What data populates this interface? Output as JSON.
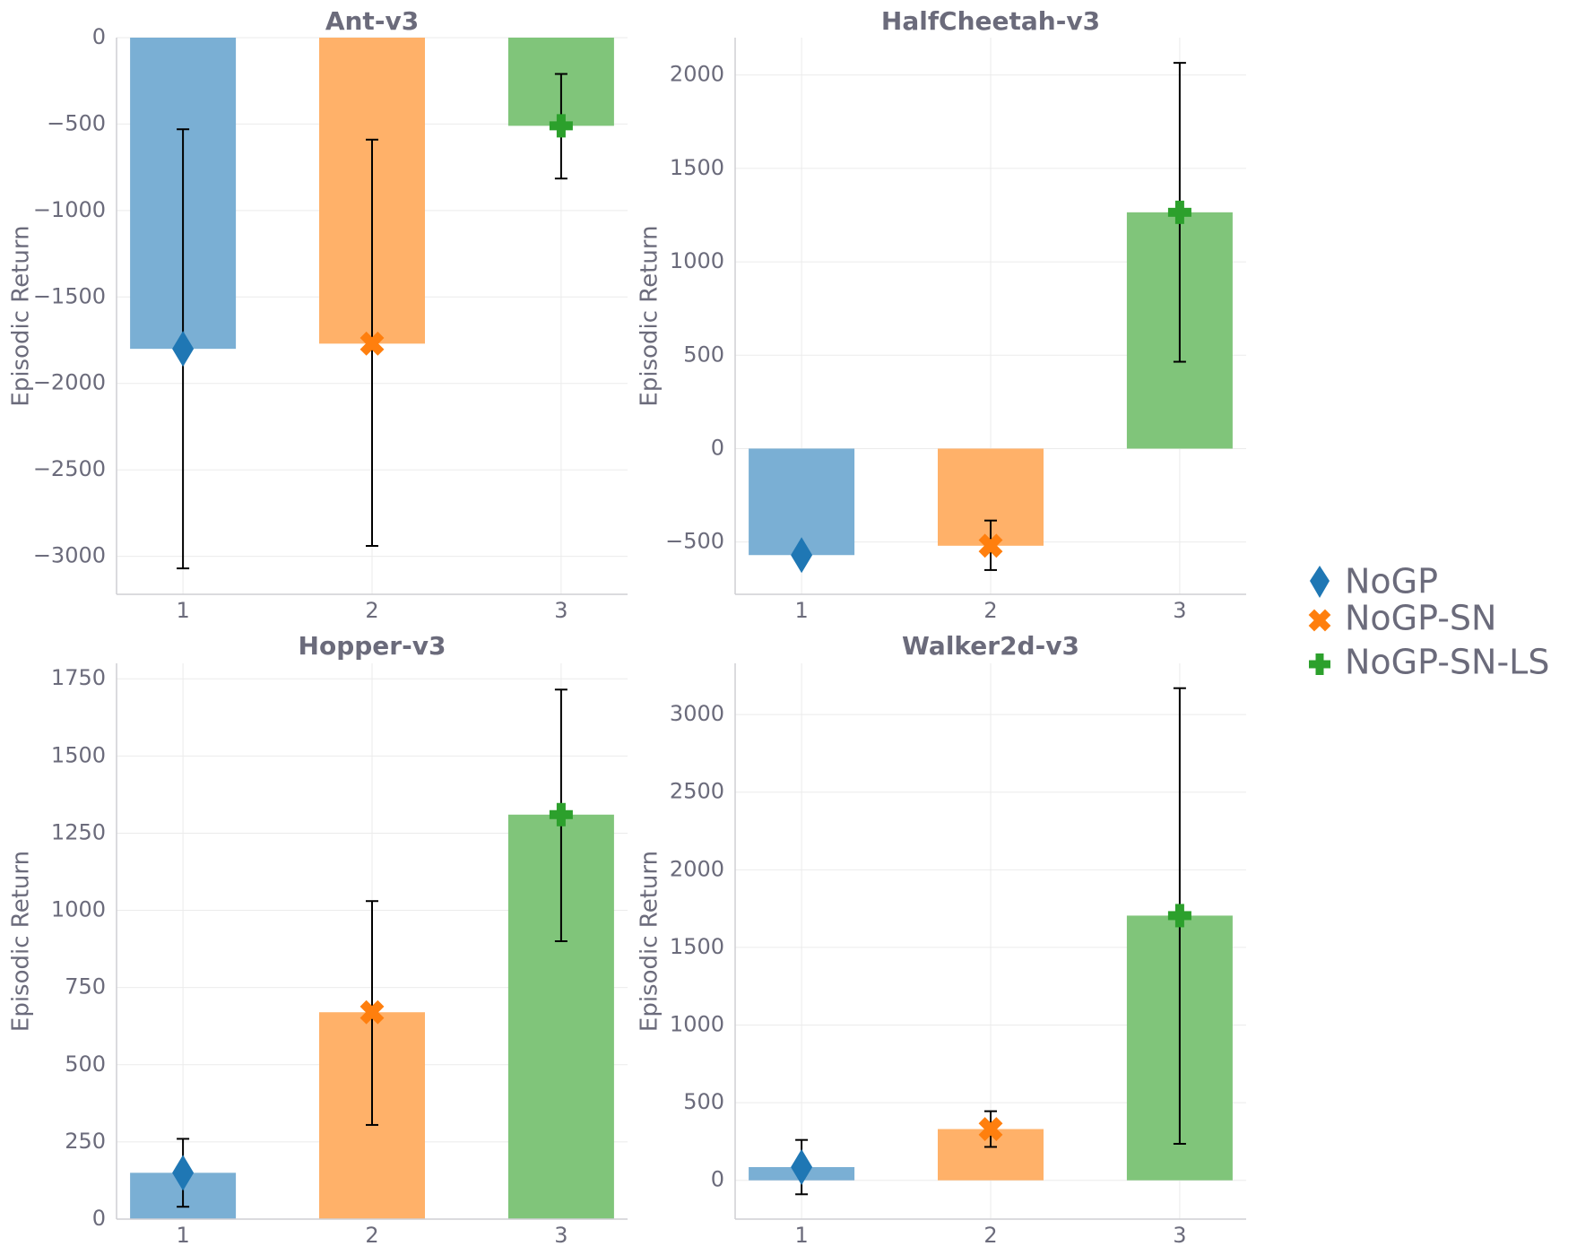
{
  "colors": {
    "series1_bar": "#7aafd4",
    "series2_bar": "#ffb169",
    "series3_bar": "#80c57a",
    "series1_marker": "#1f77b4",
    "series2_marker": "#ff7f0e",
    "series3_marker": "#2ca02c",
    "text": "#6b6b7b"
  },
  "legend": {
    "items": [
      {
        "label": "NoGP",
        "marker": "diamond-icon",
        "color": "#1f77b4"
      },
      {
        "label": "NoGP-SN",
        "marker": "x-icon",
        "color": "#ff7f0e"
      },
      {
        "label": "NoGP-SN-LS",
        "marker": "plus-icon",
        "color": "#2ca02c"
      }
    ]
  },
  "chart_data": [
    {
      "type": "bar",
      "title": "Ant-v3",
      "xlabel": "",
      "ylabel": "Episodic Return",
      "categories": [
        "1",
        "2",
        "3"
      ],
      "values": [
        -1800,
        -1770,
        -510
      ],
      "err_low": [
        -3070,
        -2940,
        -815
      ],
      "err_high": [
        -530,
        -590,
        -210
      ],
      "ylim": [
        -3220,
        0
      ],
      "yticks": [
        0,
        -500,
        -1000,
        -1500,
        -2000,
        -2500,
        -3000
      ],
      "ytick_labels": [
        "0",
        "−500",
        "−1000",
        "−1500",
        "−2000",
        "−2500",
        "−3000"
      ]
    },
    {
      "type": "bar",
      "title": "HalfCheetah-v3",
      "xlabel": "",
      "ylabel": "Episodic Return",
      "categories": [
        "1",
        "2",
        "3"
      ],
      "values": [
        -570,
        -520,
        1265
      ],
      "err_low": [
        null,
        -650,
        465
      ],
      "err_high": [
        null,
        -385,
        2065
      ],
      "ylim": [
        -780,
        2200
      ],
      "yticks": [
        2000,
        1500,
        1000,
        500,
        0,
        -500
      ],
      "ytick_labels": [
        "2000",
        "1500",
        "1000",
        "500",
        "0",
        "−500"
      ]
    },
    {
      "type": "bar",
      "title": "Hopper-v3",
      "xlabel": "",
      "ylabel": "Episodic Return",
      "categories": [
        "1",
        "2",
        "3"
      ],
      "values": [
        150,
        670,
        1310
      ],
      "err_low": [
        40,
        305,
        900
      ],
      "err_high": [
        260,
        1030,
        1715
      ],
      "ylim": [
        0,
        1800
      ],
      "yticks": [
        1750,
        1500,
        1250,
        1000,
        750,
        500,
        250,
        0
      ],
      "ytick_labels": [
        "1750",
        "1500",
        "1250",
        "1000",
        "750",
        "500",
        "250",
        "0"
      ]
    },
    {
      "type": "bar",
      "title": "Walker2d-v3",
      "xlabel": "",
      "ylabel": "Episodic Return",
      "categories": [
        "1",
        "2",
        "3"
      ],
      "values": [
        85,
        330,
        1705
      ],
      "err_low": [
        -90,
        215,
        235
      ],
      "err_high": [
        260,
        445,
        3170
      ],
      "ylim": [
        -250,
        3330
      ],
      "yticks": [
        3000,
        2500,
        2000,
        1500,
        1000,
        500,
        0
      ],
      "ytick_labels": [
        "3000",
        "2500",
        "2000",
        "1500",
        "1000",
        "500",
        "0"
      ]
    }
  ]
}
